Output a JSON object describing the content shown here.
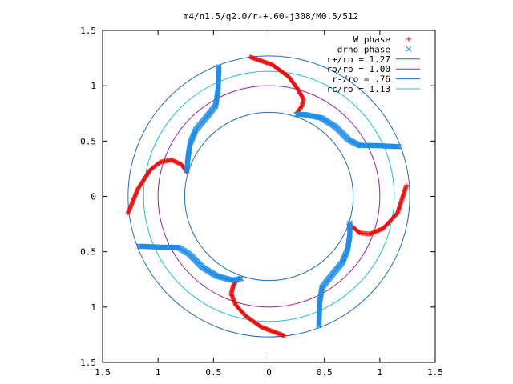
{
  "chart_data": {
    "type": "scatter",
    "title": "m4/n1.5/q2.0/r-+.60-j308/M0.5/512",
    "xlim": [
      -1.5,
      1.5
    ],
    "ylim": [
      -1.5,
      1.5
    ],
    "x_ticks": [
      {
        "value": -1.5,
        "label": "1.5"
      },
      {
        "value": -1.0,
        "label": "1"
      },
      {
        "value": -0.5,
        "label": "0.5"
      },
      {
        "value": 0.0,
        "label": "0"
      },
      {
        "value": 0.5,
        "label": "0.5"
      },
      {
        "value": 1.0,
        "label": "1"
      },
      {
        "value": 1.5,
        "label": "1.5"
      }
    ],
    "y_ticks": [
      {
        "value": 1.5,
        "label": "1.5"
      },
      {
        "value": 1.0,
        "label": "1"
      },
      {
        "value": 0.5,
        "label": "0.5"
      },
      {
        "value": 0.0,
        "label": "0"
      },
      {
        "value": -0.5,
        "label": "0.5"
      },
      {
        "value": -1.0,
        "label": "1"
      },
      {
        "value": -1.5,
        "label": "1.5"
      }
    ],
    "grid": false,
    "legend_position": "top-right",
    "circles": [
      {
        "name": "r+/ro = 1.27",
        "radius": 1.27,
        "color": "#1d6fbf"
      },
      {
        "name": "ro/ro = 1.00",
        "radius": 1.0,
        "color": "#a020a0"
      },
      {
        "name": "r-/ro = .76",
        "radius": 0.76,
        "color": "#1d6fbf"
      },
      {
        "name": "rc/ro = 1.13",
        "radius": 1.13,
        "color": "#17c3c8"
      }
    ],
    "series": [
      {
        "name": "W phase",
        "marker": "plus",
        "color": "#ee1111",
        "arms": [
          [
            [
              -0.17,
              1.26
            ],
            [
              0.03,
              1.19
            ],
            [
              0.18,
              1.08
            ],
            [
              0.26,
              0.97
            ],
            [
              0.31,
              0.88
            ],
            [
              0.3,
              0.82
            ],
            [
              0.25,
              0.75
            ]
          ],
          [
            [
              1.24,
              0.1
            ],
            [
              1.16,
              -0.15
            ],
            [
              1.03,
              -0.29
            ],
            [
              0.91,
              -0.34
            ],
            [
              0.82,
              -0.33
            ],
            [
              0.76,
              -0.28
            ],
            [
              0.72,
              -0.25
            ]
          ],
          [
            [
              0.14,
              -1.26
            ],
            [
              -0.07,
              -1.18
            ],
            [
              -0.21,
              -1.08
            ],
            [
              -0.3,
              -0.98
            ],
            [
              -0.34,
              -0.88
            ],
            [
              -0.32,
              -0.8
            ],
            [
              -0.28,
              -0.75
            ]
          ],
          [
            [
              -1.27,
              -0.15
            ],
            [
              -1.18,
              0.07
            ],
            [
              -1.07,
              0.24
            ],
            [
              -0.98,
              0.31
            ],
            [
              -0.88,
              0.33
            ],
            [
              -0.79,
              0.29
            ],
            [
              -0.74,
              0.22
            ]
          ]
        ]
      },
      {
        "name": "drho phase",
        "marker": "cross",
        "color": "#1e8ee8",
        "arms": [
          [
            [
              0.25,
              0.74
            ],
            [
              0.32,
              0.74
            ],
            [
              0.47,
              0.71
            ],
            [
              0.6,
              0.63
            ],
            [
              0.72,
              0.51
            ],
            [
              0.82,
              0.46
            ],
            [
              0.95,
              0.46
            ],
            [
              1.17,
              0.45
            ]
          ],
          [
            [
              0.73,
              -0.24
            ],
            [
              0.73,
              -0.35
            ],
            [
              0.71,
              -0.48
            ],
            [
              0.66,
              -0.6
            ],
            [
              0.56,
              -0.72
            ],
            [
              0.48,
              -0.82
            ],
            [
              0.46,
              -0.94
            ],
            [
              0.45,
              -1.17
            ]
          ],
          [
            [
              -0.25,
              -0.74
            ],
            [
              -0.32,
              -0.76
            ],
            [
              -0.47,
              -0.72
            ],
            [
              -0.6,
              -0.64
            ],
            [
              -0.72,
              -0.52
            ],
            [
              -0.82,
              -0.46
            ],
            [
              -0.95,
              -0.46
            ],
            [
              -1.17,
              -0.45
            ]
          ],
          [
            [
              -0.74,
              0.23
            ],
            [
              -0.73,
              0.35
            ],
            [
              -0.71,
              0.48
            ],
            [
              -0.66,
              0.6
            ],
            [
              -0.56,
              0.72
            ],
            [
              -0.48,
              0.82
            ],
            [
              -0.46,
              0.95
            ],
            [
              -0.45,
              1.17
            ]
          ]
        ]
      }
    ]
  }
}
